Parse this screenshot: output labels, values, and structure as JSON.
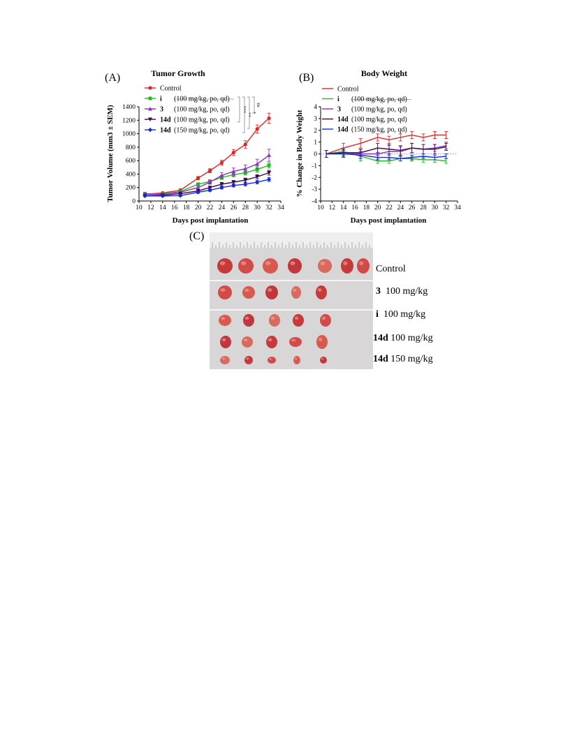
{
  "panels": {
    "a_letter": "(A)",
    "b_letter": "(B)",
    "c_letter": "(C)"
  },
  "legend": {
    "control": "Control",
    "compound_i": {
      "id": "i",
      "dose": "(100 mg/kg, po, qd)"
    },
    "compound_3": {
      "id": "3",
      "dose": "(100 mg/kg, po, qd)"
    },
    "compound_14d_100": {
      "id": "14d",
      "dose": "(100 mg/kg, po, qd)"
    },
    "compound_14d_150": {
      "id": "14d",
      "dose": "(150 mg/kg, po, qd)"
    }
  },
  "significance": {
    "ns": "ns",
    "star1": "*",
    "star2": "**",
    "star3": "***"
  },
  "colors": {
    "control": "#e8231f",
    "compound_i": "#23b823",
    "compound_3": "#8b30c8",
    "compound_14d_100": "#3a0a3a",
    "compound_14d_150": "#1228e8"
  },
  "chart_data": [
    {
      "type": "line",
      "title": "Tumor Growth",
      "xlabel": "Days post implantation",
      "ylabel": "Tumor Volume (mm3 ± SEM)",
      "xlim": [
        10,
        34
      ],
      "ylim": [
        0,
        1400
      ],
      "xticks": [
        10,
        12,
        14,
        16,
        18,
        20,
        22,
        24,
        26,
        28,
        30,
        32,
        34
      ],
      "yticks": [
        0,
        200,
        400,
        600,
        800,
        1000,
        1200,
        1400
      ],
      "x": [
        11,
        14,
        17,
        20,
        22,
        24,
        26,
        28,
        30,
        32
      ],
      "series": [
        {
          "name": "Control",
          "values": [
            100,
            120,
            160,
            340,
            450,
            570,
            720,
            840,
            1070,
            1230
          ],
          "err": [
            15,
            15,
            20,
            25,
            30,
            35,
            45,
            55,
            60,
            75
          ]
        },
        {
          "name": "i",
          "values": [
            110,
            105,
            140,
            250,
            290,
            350,
            390,
            420,
            470,
            530
          ],
          "err": [
            15,
            10,
            15,
            20,
            25,
            30,
            30,
            35,
            40,
            40
          ]
        },
        {
          "name": "3",
          "values": [
            100,
            100,
            130,
            200,
            280,
            380,
            440,
            480,
            550,
            680
          ],
          "err": [
            15,
            10,
            15,
            20,
            30,
            40,
            50,
            55,
            70,
            90
          ]
        },
        {
          "name": "14d (100)",
          "values": [
            80,
            85,
            110,
            150,
            200,
            250,
            280,
            310,
            360,
            420
          ],
          "err": [
            10,
            10,
            10,
            15,
            20,
            25,
            25,
            30,
            30,
            35
          ]
        },
        {
          "name": "14d (150)",
          "values": [
            75,
            75,
            80,
            130,
            160,
            200,
            230,
            250,
            280,
            320
          ],
          "err": [
            10,
            10,
            10,
            15,
            15,
            20,
            20,
            25,
            25,
            30
          ]
        }
      ]
    },
    {
      "type": "line",
      "title": "Body Weight",
      "xlabel": "Days post implantation",
      "ylabel": "% Change in Body Weight",
      "xlim": [
        10,
        34
      ],
      "ylim": [
        -4,
        4
      ],
      "xticks": [
        10,
        12,
        14,
        16,
        18,
        20,
        22,
        24,
        26,
        28,
        30,
        32,
        34
      ],
      "yticks": [
        -4,
        -3,
        -2,
        -1,
        0,
        1,
        2,
        3,
        4
      ],
      "x": [
        11,
        14,
        17,
        20,
        22,
        24,
        26,
        28,
        30,
        32
      ],
      "series": [
        {
          "name": "Control",
          "values": [
            0,
            0.5,
            0.9,
            1.4,
            1.2,
            1.4,
            1.6,
            1.4,
            1.6,
            1.6
          ],
          "err": [
            0.3,
            0.4,
            0.4,
            0.3,
            0.3,
            0.3,
            0.3,
            0.3,
            0.3,
            0.3
          ]
        },
        {
          "name": "i",
          "values": [
            0,
            0.2,
            -0.2,
            -0.6,
            -0.6,
            -0.4,
            -0.4,
            -0.5,
            -0.5,
            -0.6
          ],
          "err": [
            0.3,
            0.3,
            0.4,
            0.2,
            0.2,
            0.2,
            0.2,
            0.2,
            0.2,
            0.2
          ]
        },
        {
          "name": "3",
          "values": [
            0,
            0.1,
            0.0,
            0.0,
            0.2,
            0.2,
            0.5,
            0.4,
            0.5,
            0.7
          ],
          "err": [
            0.3,
            0.4,
            0.4,
            0.5,
            0.5,
            0.4,
            0.4,
            0.4,
            0.3,
            0.3
          ]
        },
        {
          "name": "14d (100)",
          "values": [
            0,
            0.1,
            0.1,
            0.5,
            0.4,
            0.3,
            0.5,
            0.4,
            0.4,
            0.6
          ],
          "err": [
            0.3,
            0.3,
            0.3,
            0.4,
            0.4,
            0.4,
            0.4,
            0.4,
            0.4,
            0.3
          ]
        },
        {
          "name": "14d (150)",
          "values": [
            0,
            0.0,
            -0.1,
            -0.3,
            -0.3,
            -0.4,
            -0.3,
            -0.2,
            -0.3,
            -0.2
          ],
          "err": [
            0.3,
            0.3,
            0.3,
            0.2,
            0.2,
            0.2,
            0.2,
            0.2,
            0.2,
            0.2
          ]
        }
      ]
    }
  ],
  "photo": {
    "row_labels": [
      {
        "id": "",
        "text": "Control"
      },
      {
        "id": "3",
        "text": "100 mg/kg"
      },
      {
        "id": "i",
        "text": "100 mg/kg"
      },
      {
        "id": "14d",
        "text": "100 mg/kg"
      },
      {
        "id": "14d",
        "text": "150 mg/kg"
      }
    ]
  }
}
